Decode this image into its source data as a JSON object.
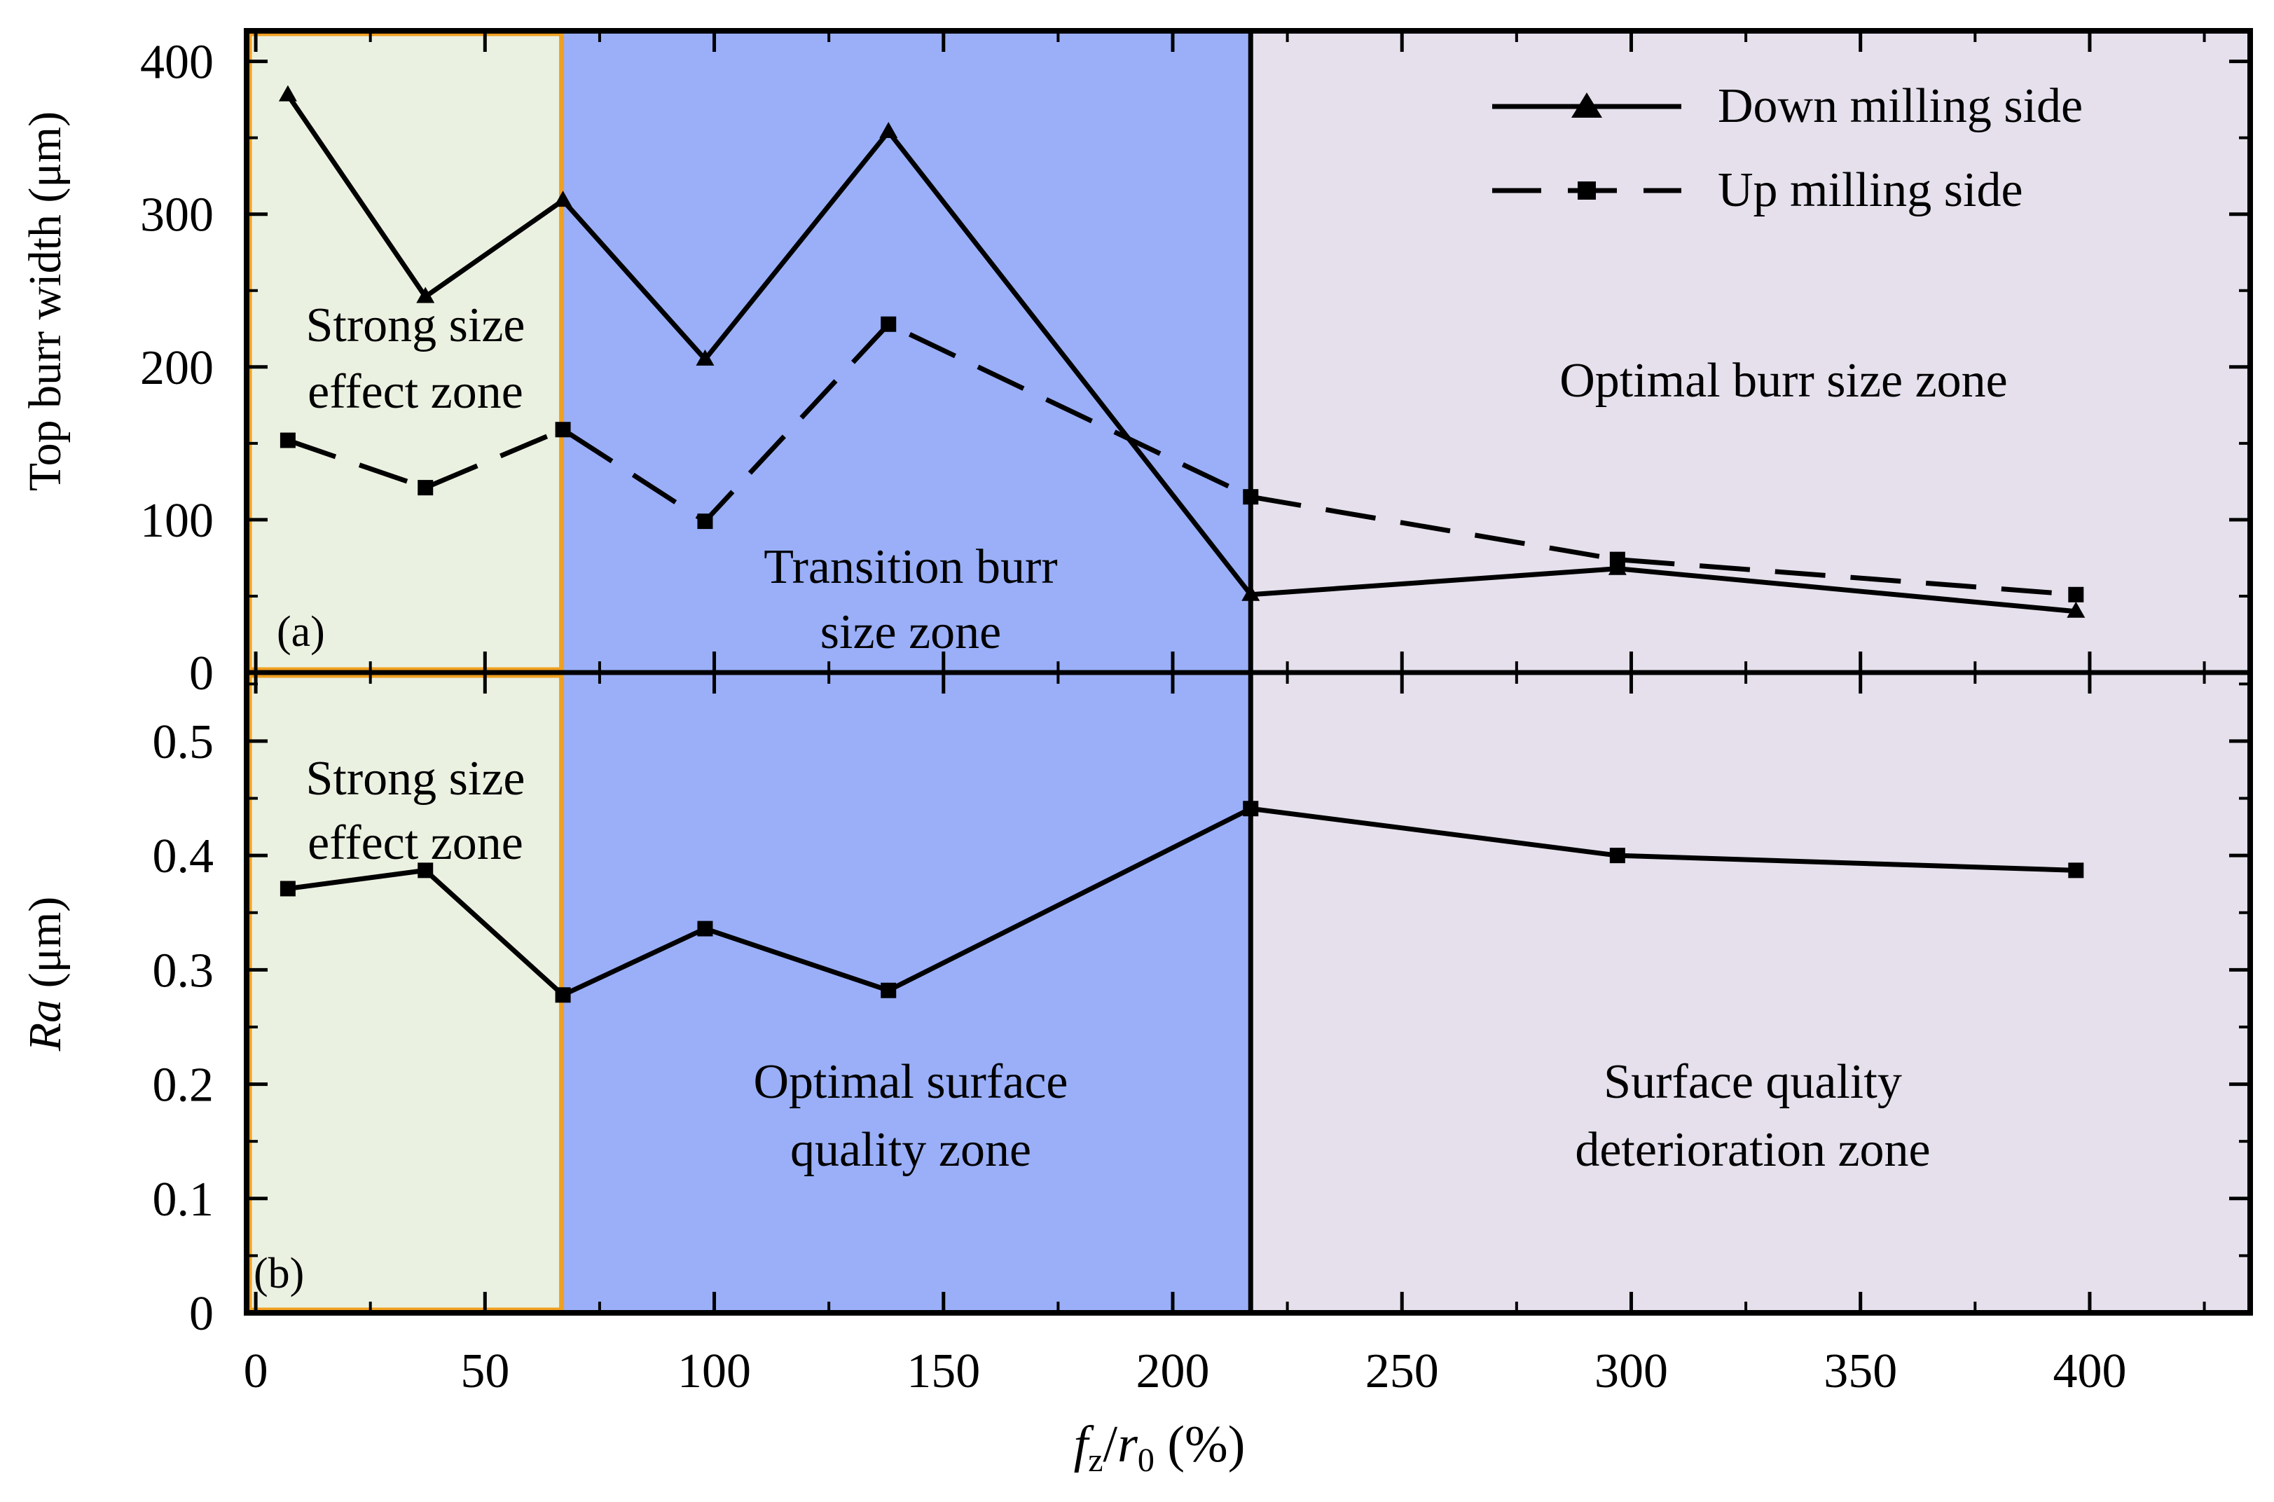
{
  "chart_data": [
    {
      "panel": "(a)",
      "type": "line",
      "ylabel": "Top burr width (μm)",
      "ylim": [
        0,
        420
      ],
      "yticks": [
        0,
        100,
        200,
        300,
        400
      ],
      "ytick_labels": [
        "0",
        "100",
        "200",
        "300",
        "400"
      ],
      "legend": "top-right",
      "series": [
        {
          "name": "Down milling side",
          "marker": "triangle",
          "line_style": "solid",
          "x": [
            7,
            37,
            67,
            98,
            138,
            217,
            297,
            397
          ],
          "y": [
            378,
            246,
            309,
            205,
            354,
            51,
            68,
            40
          ]
        },
        {
          "name": "Up milling side",
          "marker": "square",
          "line_style": "dashed",
          "x": [
            7,
            37,
            67,
            98,
            138,
            217,
            297,
            397
          ],
          "y": [
            152,
            121,
            159,
            99,
            228,
            115,
            74,
            51
          ]
        }
      ],
      "zones": [
        {
          "label_lines": [
            "Strong size",
            "effect zone"
          ],
          "x_range": [
            -2,
            67
          ],
          "color": "#ebf1e1"
        },
        {
          "label_lines": [
            "Transition burr",
            "size  zone"
          ],
          "x_range": [
            67,
            217
          ],
          "color": "#9aaff8"
        },
        {
          "label_lines": [
            "Optimal burr size zone"
          ],
          "x_range": [
            217,
            435
          ],
          "color": "#e5e0ec"
        }
      ]
    },
    {
      "panel": "(b)",
      "type": "line",
      "ylabel_italic": "Ra",
      "ylabel_rest": " (μm)",
      "ylim": [
        0,
        0.56
      ],
      "yticks": [
        0,
        0.1,
        0.2,
        0.3,
        0.4,
        0.5
      ],
      "ytick_labels": [
        "0",
        "0.1",
        "0.2",
        "0.3",
        "0.4",
        "0.5"
      ],
      "series": [
        {
          "name": "Ra",
          "marker": "square",
          "line_style": "solid",
          "x": [
            7,
            37,
            67,
            98,
            138,
            217,
            297,
            397
          ],
          "y": [
            0.371,
            0.387,
            0.278,
            0.336,
            0.282,
            0.441,
            0.4,
            0.387
          ]
        }
      ],
      "zones": [
        {
          "label_lines": [
            "Strong size",
            "effect zone"
          ],
          "x_range": [
            -2,
            67
          ],
          "color": "#ebf1e1"
        },
        {
          "label_lines": [
            "Optimal surface",
            "quality  zone"
          ],
          "x_range": [
            67,
            217
          ],
          "color": "#9aaff8"
        },
        {
          "label_lines": [
            "Surface quality",
            "deterioration zone"
          ],
          "x_range": [
            217,
            435
          ],
          "color": "#e5e0ec"
        }
      ]
    }
  ],
  "x_axis": {
    "xlim": [
      -2,
      435
    ],
    "ticks": [
      0,
      50,
      100,
      150,
      200,
      250,
      300,
      350,
      400
    ],
    "tick_labels": [
      "0",
      "50",
      "100",
      "150",
      "200",
      "250",
      "300",
      "350",
      "400"
    ],
    "xlabel_f": "f",
    "xlabel_fsub": "z",
    "xlabel_slash": "/",
    "xlabel_r": "r",
    "xlabel_rsub": "0",
    "xlabel_unit": " (%)"
  },
  "colors": {
    "zone_strong": "#ebf1e1",
    "zone_transition": "#9aaff8",
    "zone_optimal": "#e5e0ec",
    "highlight_border": "#f0a020",
    "line": "#000000"
  }
}
